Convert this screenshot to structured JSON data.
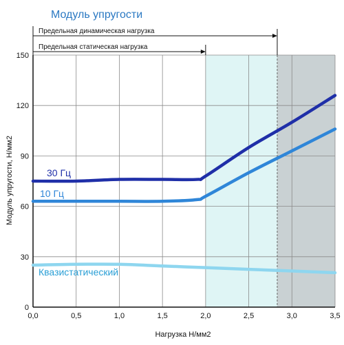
{
  "chart_data": {
    "type": "line",
    "title": "Модуль упругости",
    "xlabel": "Нагрузка Н/мм2",
    "ylabel": "Модуль упругости, Н/мм2",
    "xlim": [
      0,
      3.5
    ],
    "ylim": [
      0,
      150
    ],
    "x_ticks": [
      "0,0",
      "0,5",
      "1,0",
      "1,5",
      "2,0",
      "2,5",
      "3,0",
      "3,5"
    ],
    "y_ticks": [
      "0",
      "30",
      "60",
      "90",
      "120",
      "150"
    ],
    "grid": true,
    "regions": [
      {
        "from": 2.0,
        "to": 2.83,
        "color": "#dff5f5"
      },
      {
        "from": 2.83,
        "to": 3.5,
        "color": "#c9d1d3"
      }
    ],
    "annotations": [
      {
        "text": "Предельная динамическая нагрузка",
        "x_end": 2.83
      },
      {
        "text": "Предельная статическая нагрузка",
        "x_end": 2.0
      }
    ],
    "series": [
      {
        "name": "30 Гц",
        "color": "#1f2fa8",
        "x": [
          0,
          0.5,
          1.0,
          1.5,
          1.9,
          2.0,
          2.5,
          3.0,
          3.5
        ],
        "y": [
          75,
          75,
          76,
          76,
          76,
          78,
          95,
          110,
          126
        ]
      },
      {
        "name": "10 Гц",
        "color": "#2f86d8",
        "x": [
          0,
          0.5,
          1.0,
          1.5,
          1.9,
          2.0,
          2.5,
          3.0,
          3.5
        ],
        "y": [
          63,
          63,
          63,
          63,
          64,
          66,
          80,
          93,
          106
        ]
      },
      {
        "name": "Квазистатический",
        "color": "#8ed6ef",
        "x": [
          0,
          0.5,
          1.0,
          1.5,
          2.0,
          2.5,
          3.0,
          3.5
        ],
        "y": [
          25,
          25.5,
          25.5,
          24.5,
          23.5,
          22.5,
          21.5,
          20.5
        ]
      }
    ]
  }
}
